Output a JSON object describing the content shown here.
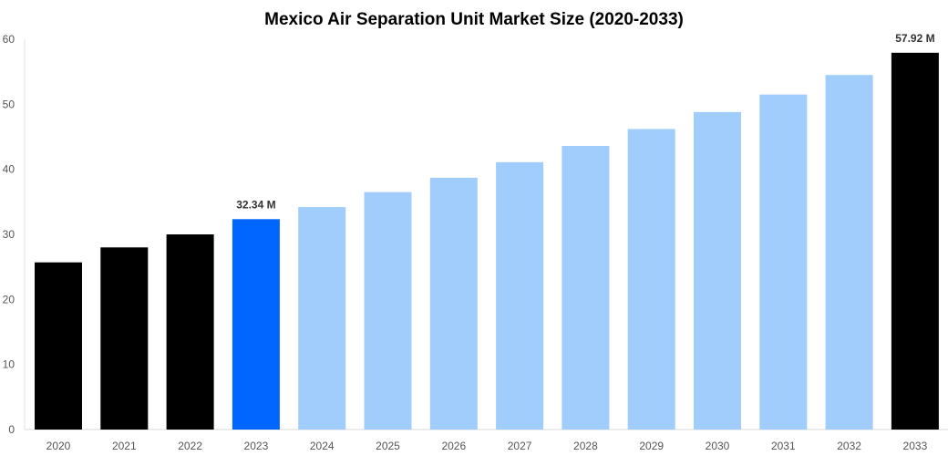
{
  "chart_data": {
    "type": "bar",
    "title": "Mexico Air Separation Unit Market Size (2020-2033)",
    "xlabel": "",
    "ylabel": "",
    "ylim": [
      0,
      60
    ],
    "yticks": [
      0,
      10,
      20,
      30,
      40,
      50,
      60
    ],
    "grid": false,
    "categories": [
      "2020",
      "2021",
      "2022",
      "2023",
      "2024",
      "2025",
      "2026",
      "2027",
      "2028",
      "2029",
      "2030",
      "2031",
      "2032",
      "2033"
    ],
    "values": [
      25.7,
      28.0,
      30.0,
      32.34,
      34.2,
      36.5,
      38.7,
      41.1,
      43.6,
      46.2,
      48.8,
      51.5,
      54.5,
      57.92
    ],
    "bar_colors": [
      "#000000",
      "#000000",
      "#000000",
      "#0066ff",
      "#a0cdfc",
      "#a0cdfc",
      "#a0cdfc",
      "#a0cdfc",
      "#a0cdfc",
      "#a0cdfc",
      "#a0cdfc",
      "#a0cdfc",
      "#a0cdfc",
      "#000000"
    ],
    "data_labels": {
      "2023": "32.34 M",
      "2033": "57.92 M"
    }
  }
}
